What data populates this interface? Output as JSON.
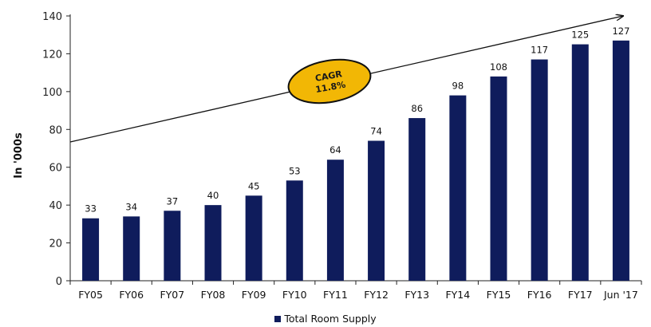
{
  "chart_data": {
    "type": "bar",
    "categories": [
      "FY05",
      "FY06",
      "FY07",
      "FY08",
      "FY09",
      "FY10",
      "FY11",
      "FY12",
      "FY13",
      "FY14",
      "FY15",
      "FY16",
      "FY17",
      "Jun '17"
    ],
    "series": [
      {
        "name": "Total Room Supply",
        "values": [
          33,
          34,
          37,
          40,
          45,
          53,
          64,
          74,
          86,
          98,
          108,
          117,
          125,
          127
        ],
        "color": "#0f1c5c"
      }
    ],
    "ylabel": "In '000s",
    "xlabel": "",
    "ylim": [
      0,
      140
    ],
    "yticks": [
      0,
      20,
      40,
      60,
      80,
      100,
      120,
      140
    ],
    "grid": false,
    "legend": "bottom-center",
    "annotation": {
      "line1": "CAGR",
      "line2": "11.8%",
      "fill": "#f2b705",
      "stroke": "#111111"
    }
  }
}
